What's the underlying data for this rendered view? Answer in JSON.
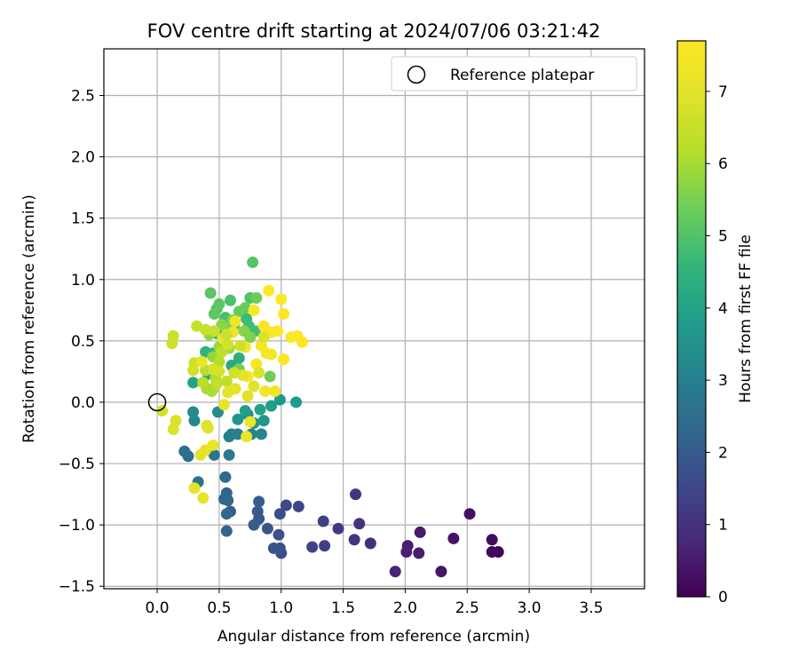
{
  "chart_data": {
    "type": "scatter",
    "title": "FOV centre drift starting at 2024/07/06 03:21:42",
    "xlabel": "Angular distance from reference (arcmin)",
    "ylabel": "Rotation from reference (arcmin)",
    "xlim": [
      -0.43,
      3.93
    ],
    "ylim": [
      -1.52,
      2.88
    ],
    "xticks": [
      "0.0",
      "0.5",
      "1.0",
      "1.5",
      "2.0",
      "2.5",
      "3.0",
      "3.5"
    ],
    "yticks": [
      "−1.5",
      "−1.0",
      "−0.5",
      "0.0",
      "0.5",
      "1.0",
      "1.5",
      "2.0",
      "2.5"
    ],
    "grid": true,
    "legend": {
      "location": "top-right",
      "entries": [
        "Reference platepar"
      ]
    },
    "reference_point": {
      "x": 0.0,
      "y": 0.0
    },
    "colorbar": {
      "label": "Hours from first FF file",
      "range": [
        0,
        7.7
      ],
      "ticks": [
        "0",
        "1",
        "2",
        "3",
        "4",
        "5",
        "6",
        "7"
      ],
      "colormap": "viridis"
    },
    "points": [
      [
        2.75,
        -1.22,
        0.1
      ],
      [
        2.7,
        -1.22,
        0.15
      ],
      [
        2.7,
        -1.12,
        0.2
      ],
      [
        2.52,
        -0.91,
        0.3
      ],
      [
        2.39,
        -1.11,
        0.35
      ],
      [
        2.29,
        -1.38,
        0.4
      ],
      [
        2.12,
        -1.06,
        0.5
      ],
      [
        2.11,
        -1.23,
        0.55
      ],
      [
        2.02,
        -1.17,
        0.6
      ],
      [
        2.01,
        -1.22,
        0.65
      ],
      [
        1.92,
        -1.38,
        0.7
      ],
      [
        1.72,
        -1.15,
        0.9
      ],
      [
        1.63,
        -0.99,
        1.0
      ],
      [
        1.6,
        -0.75,
        1.05
      ],
      [
        1.59,
        -1.12,
        1.1
      ],
      [
        1.46,
        -1.03,
        1.2
      ],
      [
        1.35,
        -1.17,
        1.3
      ],
      [
        1.34,
        -0.97,
        1.35
      ],
      [
        1.25,
        -1.18,
        1.4
      ],
      [
        1.14,
        -0.85,
        1.5
      ],
      [
        1.04,
        -0.84,
        1.55
      ],
      [
        1.0,
        -1.23,
        1.6
      ],
      [
        0.99,
        -0.91,
        1.65
      ],
      [
        0.99,
        -1.19,
        1.7
      ],
      [
        0.98,
        -1.08,
        1.75
      ],
      [
        0.94,
        -1.19,
        1.8
      ],
      [
        0.89,
        -1.03,
        1.85
      ],
      [
        0.82,
        -0.95,
        1.9
      ],
      [
        0.81,
        -0.89,
        1.95
      ],
      [
        0.78,
        -1.0,
        2.0
      ],
      [
        0.82,
        -0.81,
        2.05
      ],
      [
        0.59,
        -0.89,
        2.1
      ],
      [
        0.56,
        -0.74,
        2.15
      ],
      [
        0.56,
        -1.05,
        2.2
      ],
      [
        0.57,
        -0.8,
        2.25
      ],
      [
        0.54,
        -0.79,
        2.3
      ],
      [
        0.56,
        -0.91,
        2.35
      ],
      [
        0.55,
        -0.61,
        2.4
      ],
      [
        0.25,
        -0.44,
        2.45
      ],
      [
        0.22,
        -0.4,
        2.5
      ],
      [
        0.33,
        -0.65,
        2.6
      ],
      [
        0.46,
        -0.43,
        2.7
      ],
      [
        0.58,
        -0.43,
        2.8
      ],
      [
        0.6,
        -0.26,
        2.9
      ],
      [
        0.58,
        -0.28,
        3.0
      ],
      [
        0.65,
        -0.26,
        3.05
      ],
      [
        0.76,
        -0.26,
        3.1
      ],
      [
        0.84,
        -0.26,
        3.2
      ],
      [
        0.3,
        -0.15,
        3.25
      ],
      [
        0.29,
        -0.08,
        3.3
      ],
      [
        0.49,
        -0.08,
        3.4
      ],
      [
        0.73,
        -0.1,
        3.45
      ],
      [
        0.78,
        -0.17,
        3.5
      ],
      [
        0.65,
        -0.14,
        3.6
      ],
      [
        0.86,
        -0.15,
        3.65
      ],
      [
        0.99,
        0.02,
        3.7
      ],
      [
        1.12,
        0.0,
        3.8
      ],
      [
        0.92,
        -0.03,
        3.85
      ],
      [
        0.71,
        -0.07,
        3.9
      ],
      [
        0.83,
        -0.06,
        4.0
      ],
      [
        0.29,
        0.16,
        4.05
      ],
      [
        0.41,
        0.23,
        4.1
      ],
      [
        0.6,
        0.3,
        4.2
      ],
      [
        0.66,
        0.36,
        4.3
      ],
      [
        0.55,
        0.48,
        4.35
      ],
      [
        0.45,
        0.4,
        4.4
      ],
      [
        0.39,
        0.41,
        4.5
      ],
      [
        0.48,
        0.56,
        4.55
      ],
      [
        0.62,
        0.63,
        4.6
      ],
      [
        0.72,
        0.68,
        4.7
      ],
      [
        0.74,
        0.62,
        4.75
      ],
      [
        0.79,
        0.58,
        4.8
      ],
      [
        0.55,
        0.69,
        4.85
      ],
      [
        0.48,
        0.76,
        4.9
      ],
      [
        0.59,
        0.83,
        4.95
      ],
      [
        0.75,
        0.85,
        5.0
      ],
      [
        0.77,
        1.14,
        5.05
      ],
      [
        0.43,
        0.89,
        5.1
      ],
      [
        0.5,
        0.8,
        5.15
      ],
      [
        0.46,
        0.72,
        5.2
      ],
      [
        0.66,
        0.74,
        5.25
      ],
      [
        0.71,
        0.77,
        5.3
      ],
      [
        0.8,
        0.85,
        5.35
      ],
      [
        0.91,
        0.21,
        5.4
      ],
      [
        0.66,
        0.27,
        5.45
      ],
      [
        0.6,
        0.62,
        5.5
      ],
      [
        0.75,
        0.53,
        5.55
      ],
      [
        0.61,
        0.67,
        5.6
      ],
      [
        0.7,
        0.58,
        5.65
      ],
      [
        0.52,
        0.63,
        5.7
      ],
      [
        0.42,
        0.55,
        5.75
      ],
      [
        0.45,
        0.37,
        5.8
      ],
      [
        0.5,
        0.45,
        5.85
      ],
      [
        0.58,
        0.44,
        5.9
      ],
      [
        0.46,
        0.12,
        5.95
      ],
      [
        0.4,
        0.11,
        6.0
      ],
      [
        0.44,
        0.09,
        6.05
      ],
      [
        0.47,
        0.2,
        6.1
      ],
      [
        0.5,
        0.33,
        6.15
      ],
      [
        0.39,
        0.26,
        6.2
      ],
      [
        0.37,
        0.16,
        6.25
      ],
      [
        0.52,
        0.41,
        6.3
      ],
      [
        0.56,
        0.17,
        6.35
      ],
      [
        0.48,
        0.15,
        6.4
      ],
      [
        0.32,
        0.62,
        6.45
      ],
      [
        0.39,
        0.59,
        6.5
      ],
      [
        0.13,
        0.54,
        6.55
      ],
      [
        0.12,
        0.48,
        6.6
      ],
      [
        0.3,
        0.32,
        6.65
      ],
      [
        0.29,
        0.26,
        6.7
      ],
      [
        0.04,
        -0.07,
        6.75
      ],
      [
        0.15,
        -0.15,
        6.8
      ],
      [
        0.13,
        -0.22,
        6.85
      ],
      [
        0.4,
        -0.19,
        6.9
      ],
      [
        0.41,
        -0.21,
        6.95
      ],
      [
        0.35,
        -0.43,
        7.0
      ],
      [
        0.39,
        -0.39,
        7.05
      ],
      [
        0.3,
        -0.7,
        7.1
      ],
      [
        0.37,
        -0.78,
        7.15
      ],
      [
        0.45,
        -0.35,
        7.2
      ],
      [
        0.36,
        0.33,
        7.25
      ],
      [
        0.53,
        0.52,
        7.3
      ],
      [
        0.61,
        0.57,
        7.35
      ],
      [
        0.63,
        0.66,
        7.4
      ],
      [
        0.71,
        0.45,
        7.45
      ],
      [
        0.73,
        0.21,
        7.5
      ],
      [
        0.8,
        0.31,
        7.55
      ],
      [
        0.88,
        0.4,
        7.6
      ],
      [
        0.92,
        0.57,
        7.62
      ],
      [
        0.97,
        0.58,
        7.64
      ],
      [
        1.02,
        0.35,
        7.66
      ],
      [
        1.08,
        0.53,
        7.68
      ],
      [
        1.13,
        0.54,
        7.7
      ],
      [
        1.17,
        0.49,
        7.7
      ],
      [
        1.0,
        0.84,
        7.7
      ],
      [
        1.02,
        0.72,
        7.68
      ],
      [
        0.9,
        0.91,
        7.66
      ],
      [
        0.78,
        0.75,
        7.6
      ],
      [
        0.86,
        0.62,
        7.55
      ],
      [
        0.84,
        0.46,
        7.5
      ],
      [
        0.92,
        0.39,
        7.45
      ],
      [
        0.95,
        0.09,
        7.4
      ],
      [
        0.87,
        0.09,
        7.35
      ],
      [
        0.75,
        -0.16,
        7.3
      ],
      [
        0.72,
        -0.28,
        7.25
      ],
      [
        0.54,
        -0.02,
        7.2
      ],
      [
        0.57,
        0.08,
        7.15
      ],
      [
        0.63,
        0.11,
        7.1
      ],
      [
        0.69,
        0.22,
        7.05
      ],
      [
        0.73,
        0.05,
        7.0
      ],
      [
        0.78,
        0.13,
        6.95
      ],
      [
        0.82,
        0.24,
        6.9
      ],
      [
        0.86,
        0.53,
        6.85
      ],
      [
        0.45,
        0.27,
        6.8
      ],
      [
        0.5,
        0.25,
        6.75
      ],
      [
        0.57,
        0.47,
        6.7
      ],
      [
        0.62,
        0.24,
        6.65
      ],
      [
        0.67,
        0.46,
        6.6
      ],
      [
        0.56,
        0.55,
        6.55
      ],
      [
        0.46,
        0.58,
        6.5
      ]
    ]
  }
}
